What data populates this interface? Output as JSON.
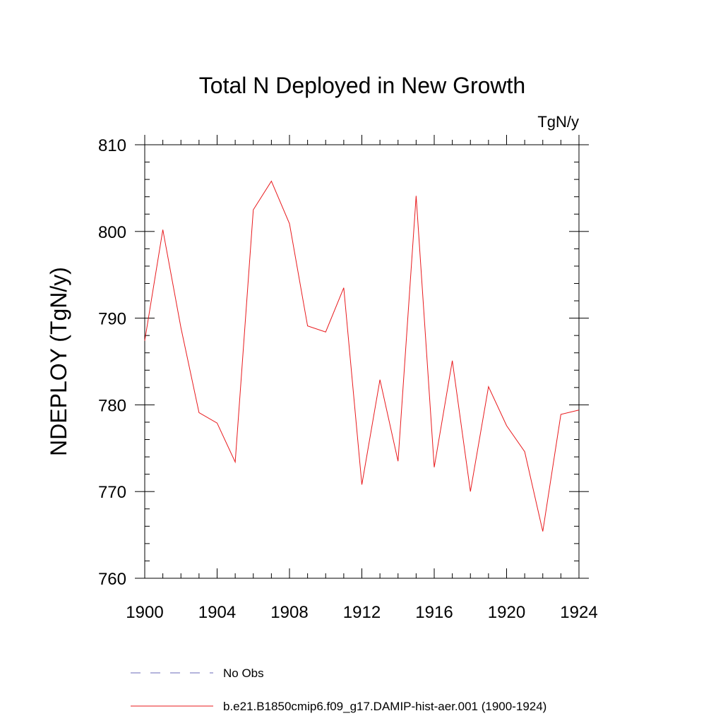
{
  "chart_data": {
    "type": "line",
    "title": "Total N Deployed in New Growth",
    "units_label": "TgN/y",
    "ylabel": "NDEPLOY  (TgN/y)",
    "xlabel": "",
    "xlim": [
      1900,
      1924
    ],
    "ylim": [
      760,
      810
    ],
    "x_major_ticks": [
      1900,
      1904,
      1908,
      1912,
      1916,
      1920,
      1924
    ],
    "y_major_ticks": [
      760,
      770,
      780,
      790,
      800,
      810
    ],
    "grid": false,
    "legend_position": "bottom",
    "x": [
      1900,
      1901,
      1902,
      1903,
      1904,
      1905,
      1906,
      1907,
      1908,
      1909,
      1910,
      1911,
      1912,
      1913,
      1914,
      1915,
      1916,
      1917,
      1918,
      1919,
      1920,
      1921,
      1922,
      1923,
      1924
    ],
    "series": [
      {
        "name": "b.e21.B1850cmip6.f09_g17.DAMIP-hist-aer.001 (1900-1924)",
        "color": "#e8191c",
        "style": "solid",
        "values": [
          787.4,
          800.2,
          788.9,
          779.1,
          777.9,
          773.4,
          802.5,
          805.8,
          800.9,
          789.1,
          788.4,
          793.5,
          770.8,
          782.9,
          773.5,
          804.1,
          772.8,
          785.1,
          770.0,
          782.1,
          777.6,
          774.6,
          765.4,
          778.9,
          779.4
        ]
      }
    ],
    "legend": [
      {
        "label": "No Obs",
        "color": "#6a6ab8",
        "style": "dashed"
      },
      {
        "label": "b.e21.B1850cmip6.f09_g17.DAMIP-hist-aer.001 (1900-1924)",
        "color": "#e8191c",
        "style": "solid"
      }
    ]
  }
}
